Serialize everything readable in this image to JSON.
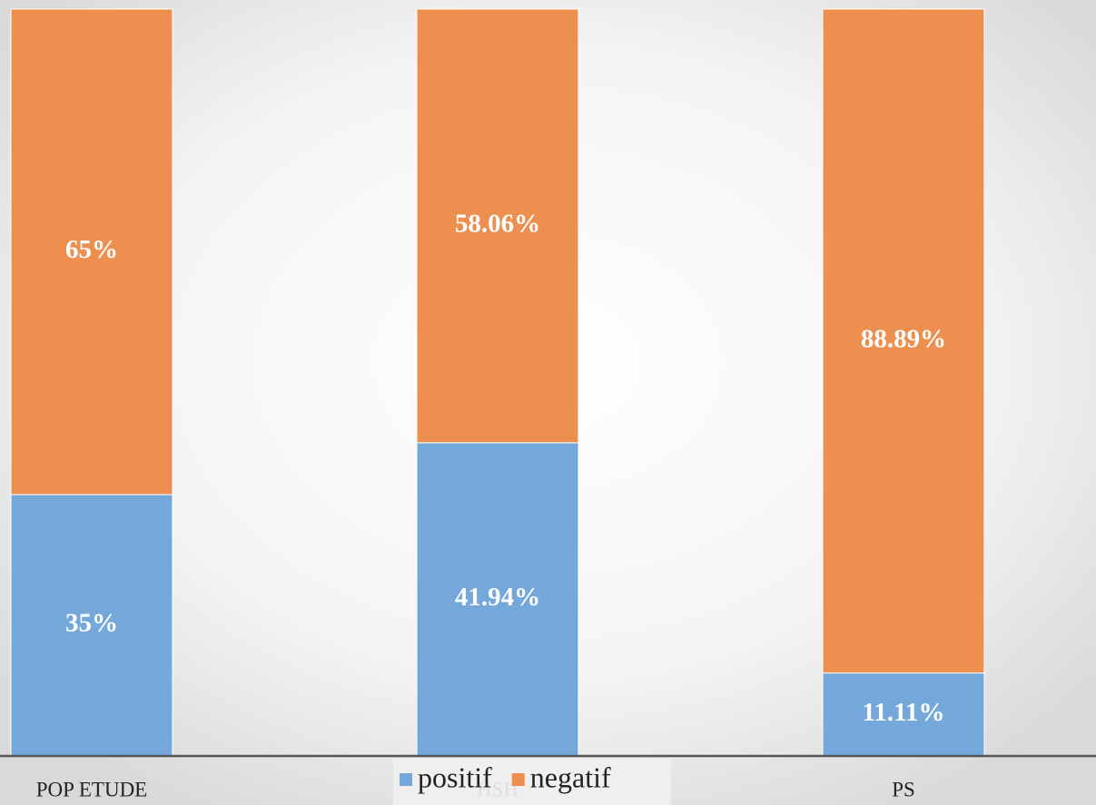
{
  "chart_data": {
    "type": "stacked_bar",
    "categories": [
      "POP ETUDE",
      "HSH",
      "PS"
    ],
    "series": [
      {
        "name": "positif",
        "color": "#74a8da",
        "values": [
          35,
          41.94,
          11.11
        ],
        "value_labels": [
          "35%",
          "41.94%",
          "11.11%"
        ]
      },
      {
        "name": "negatif",
        "color": "#ed8f4e",
        "values": [
          65,
          58.06,
          88.89
        ],
        "value_labels": [
          "65%",
          "58.06%",
          "88.89%"
        ]
      }
    ],
    "ylim": [
      0,
      100
    ],
    "legend": "bottom"
  }
}
